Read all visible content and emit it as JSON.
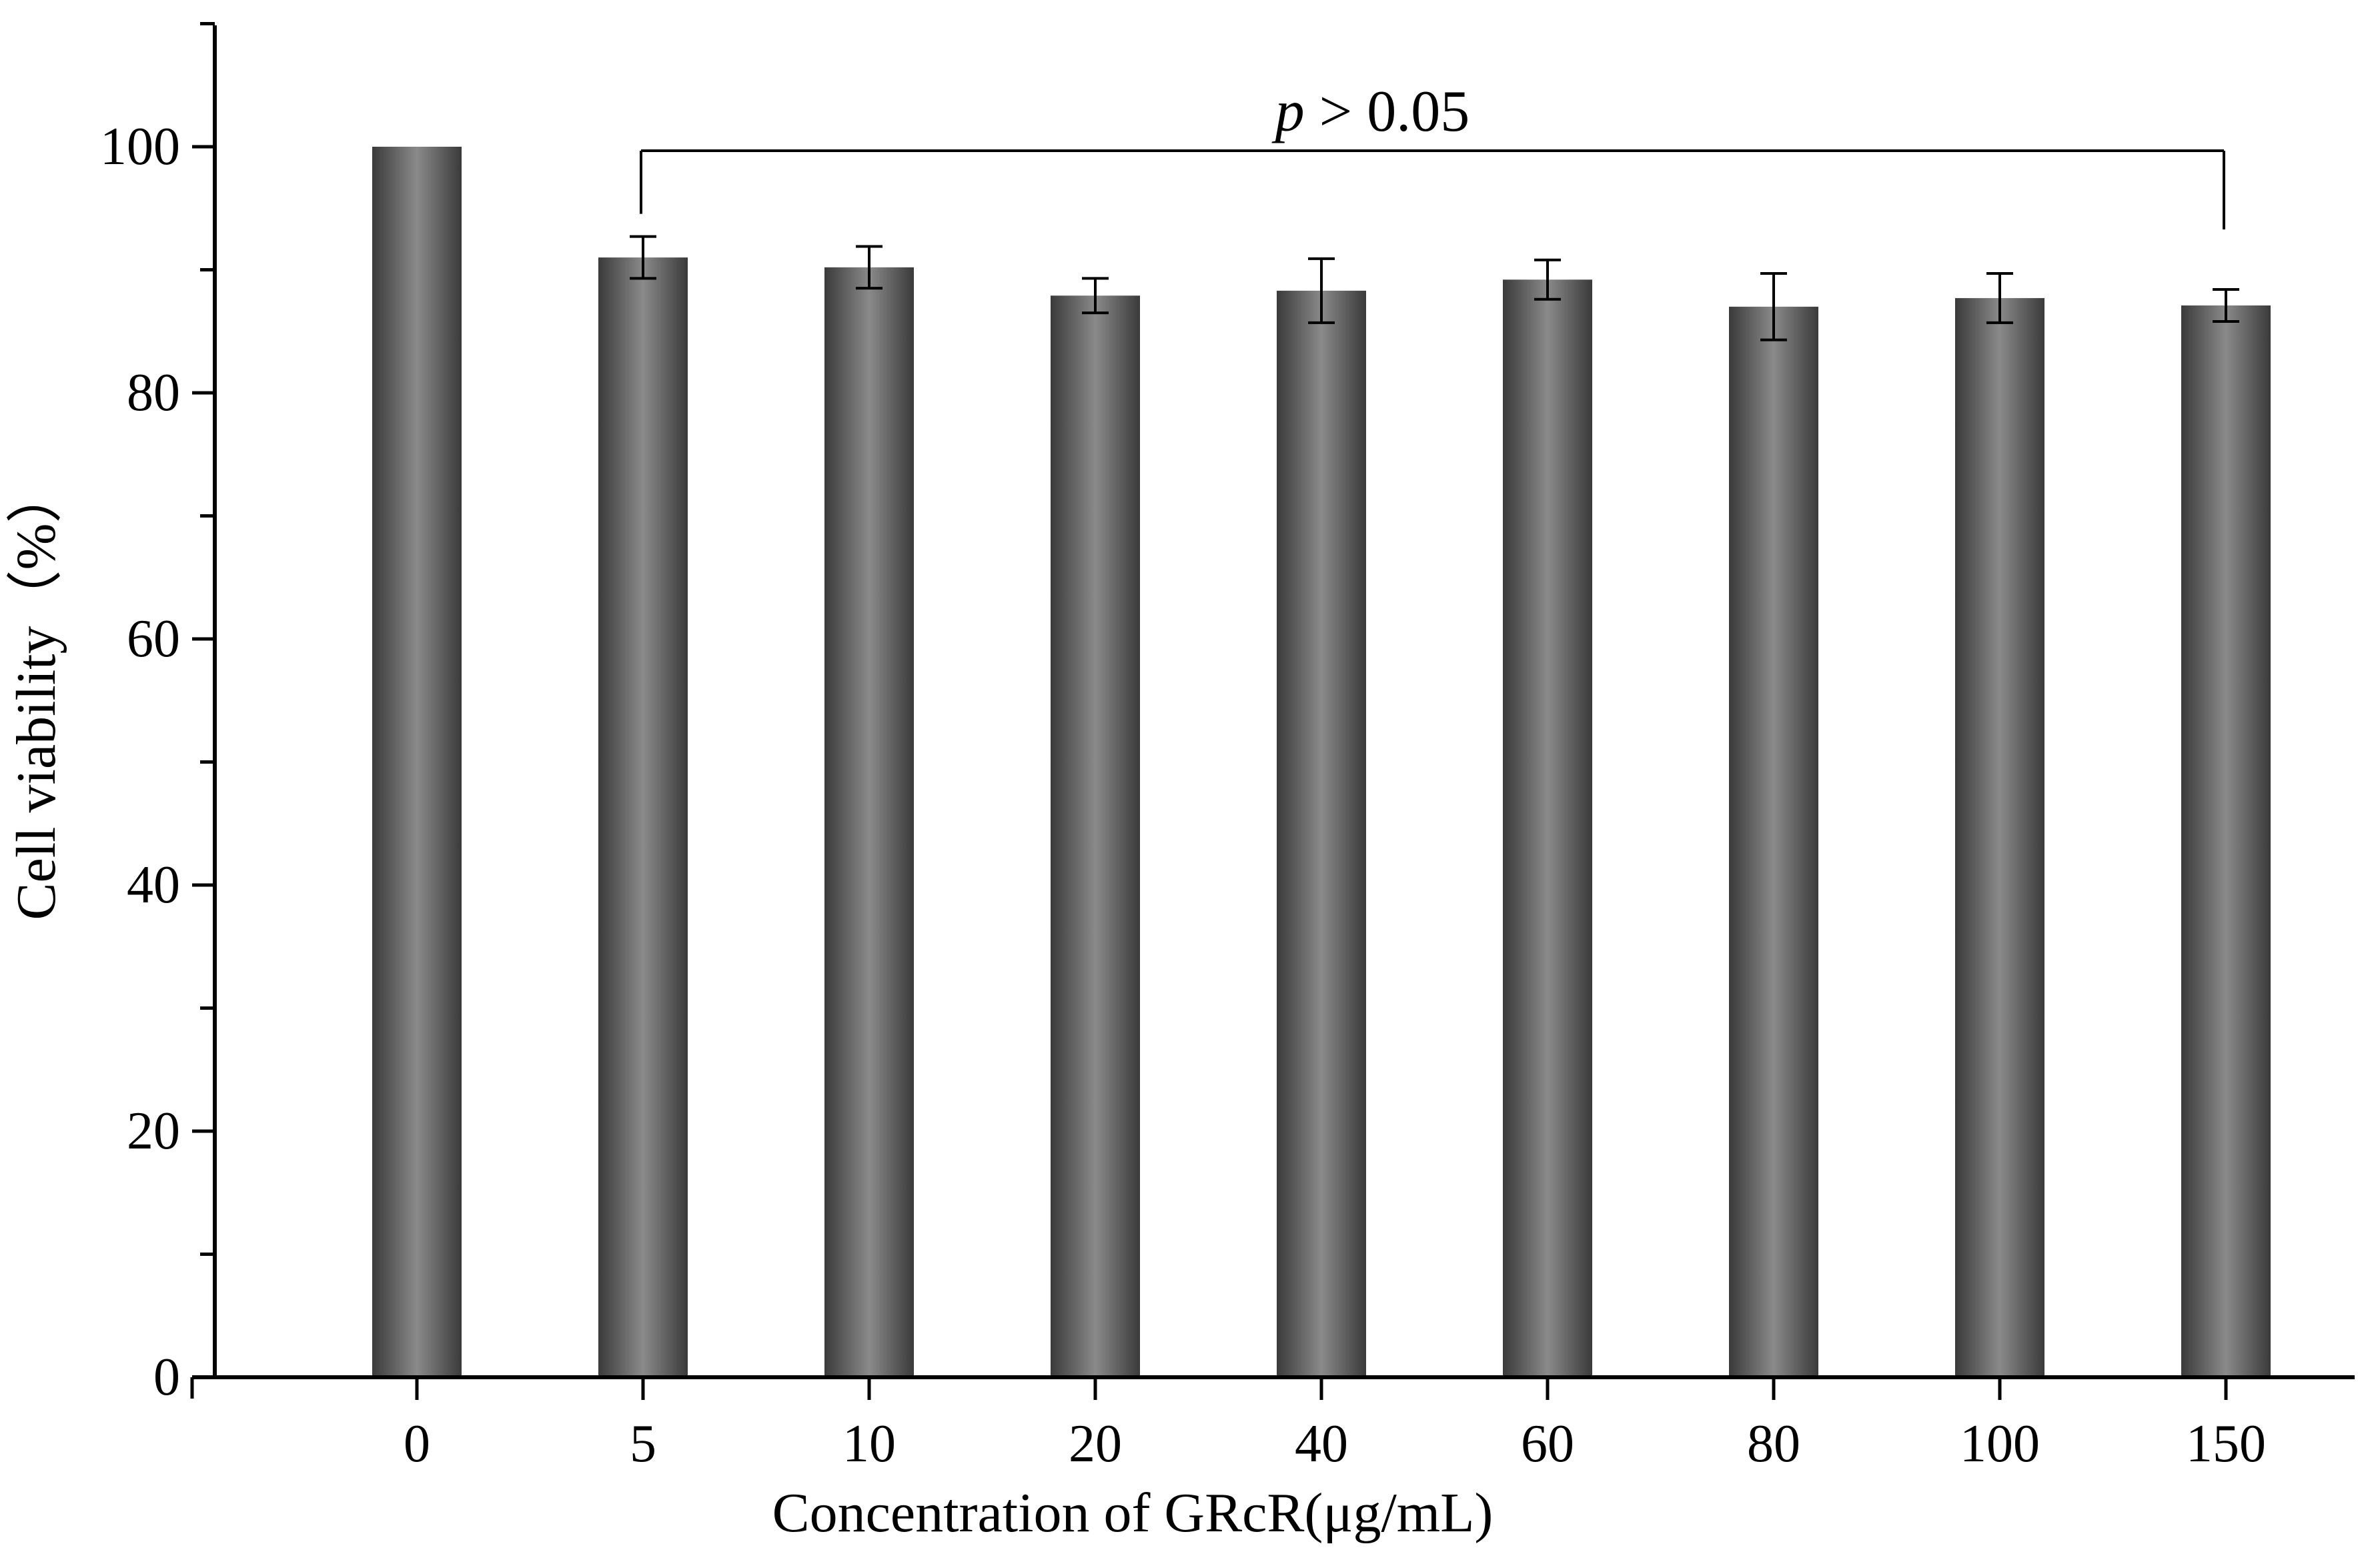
{
  "chart_data": {
    "type": "bar",
    "title": "",
    "xlabel": "Concentration of GRcR(μg/mL)",
    "ylabel": "Cell viability（%）",
    "categories": [
      "0",
      "5",
      "10",
      "20",
      "40",
      "60",
      "80",
      "100",
      "150"
    ],
    "values": [
      100,
      91,
      90.2,
      87.9,
      88.3,
      89.2,
      87.0,
      87.7,
      87.1
    ],
    "errors": [
      0,
      1.7,
      1.7,
      1.4,
      2.6,
      1.6,
      2.7,
      2.0,
      1.3
    ],
    "ylim": [
      0,
      110
    ],
    "yticks": [
      0,
      20,
      40,
      60,
      80,
      100
    ],
    "grid": false,
    "bar_color": "#5a5a5a",
    "annotation": {
      "text_prefix": "p",
      "text_suffix": " > 0.05",
      "from_category": "5",
      "to_category": "150",
      "level": 100
    }
  }
}
